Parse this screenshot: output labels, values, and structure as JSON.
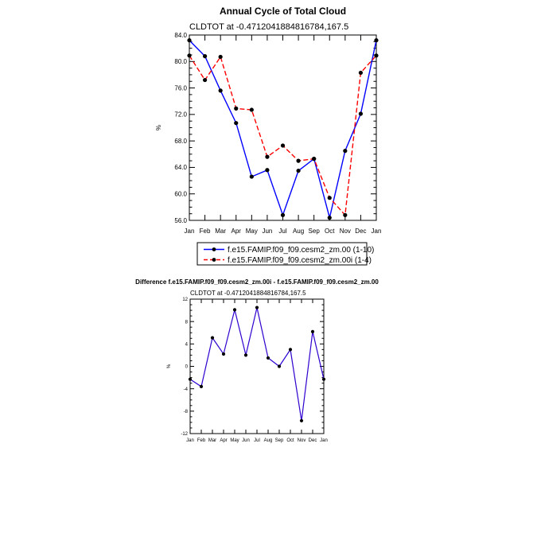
{
  "chart_data": [
    {
      "type": "line",
      "title": "Annual Cycle of Total Cloud",
      "subtitle": "CLDTOT at -0.4712041884816784,167.5",
      "xlabel": "",
      "ylabel": "%",
      "categories": [
        "Jan",
        "Feb",
        "Mar",
        "Apr",
        "May",
        "Jun",
        "Jul",
        "Aug",
        "Sep",
        "Oct",
        "Nov",
        "Dec",
        "Jan"
      ],
      "ylim": [
        56.0,
        84.0
      ],
      "yticks": [
        "56.0",
        "60.0",
        "64.0",
        "68.0",
        "72.0",
        "76.0",
        "80.0",
        "84.0"
      ],
      "series": [
        {
          "name": "f.e15.FAMIP.f09_f09.cesm2_zm.00 (1-10)",
          "color": "#0000ff",
          "dash": "solid",
          "values": [
            83.2,
            80.8,
            75.6,
            70.7,
            62.6,
            63.6,
            56.8,
            63.5,
            65.3,
            56.4,
            66.5,
            72.1,
            83.2
          ]
        },
        {
          "name": "f.e15.FAMIP.f09_f09.cesm2_zm.00i (1-4)",
          "color": "#ff0000",
          "dash": "dashed",
          "values": [
            80.9,
            77.2,
            80.7,
            72.9,
            72.7,
            65.6,
            67.3,
            65.0,
            65.3,
            59.4,
            56.8,
            78.3,
            80.9
          ]
        }
      ],
      "legend": "bottom-center"
    },
    {
      "type": "line",
      "title": "Difference f.e15.FAMIP.f09_f09.cesm2_zm.00i - f.e15.FAMIP.f09_f09.cesm2_zm.00",
      "subtitle": "CLDTOT at -0.4712041884816784,167.5",
      "xlabel": "",
      "ylabel": "%",
      "categories": [
        "Jan",
        "Feb",
        "Mar",
        "Apr",
        "May",
        "Jun",
        "Jul",
        "Aug",
        "Sep",
        "Oct",
        "Nov",
        "Dec",
        "Jan"
      ],
      "ylim": [
        -12,
        12
      ],
      "yticks": [
        "-12",
        "-8",
        "-4",
        "0",
        "4",
        "8",
        "12"
      ],
      "series": [
        {
          "name": "difference",
          "color": "#0000ff",
          "overlay": "#800080",
          "values": [
            -2.3,
            -3.6,
            5.1,
            2.2,
            10.1,
            2.0,
            10.5,
            1.5,
            0.0,
            3.0,
            -9.7,
            6.2,
            -2.3
          ]
        }
      ]
    }
  ]
}
